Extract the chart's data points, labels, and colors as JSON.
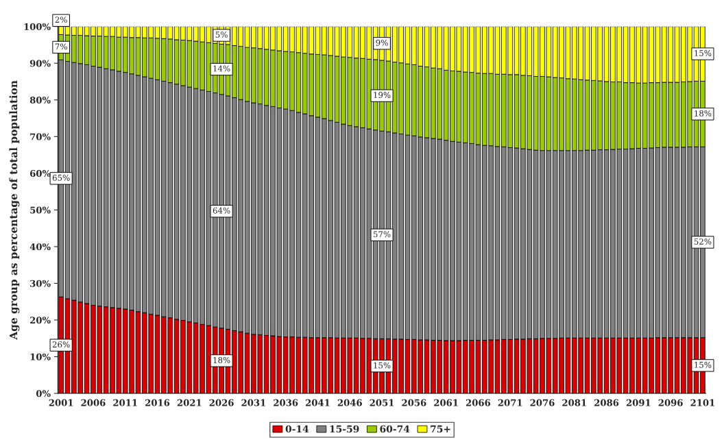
{
  "chart_data": {
    "type": "bar",
    "stacked": true,
    "ylabel": "Age group as percentage of total population",
    "categories": [
      "2001",
      null,
      null,
      null,
      null,
      "2006",
      null,
      null,
      null,
      null,
      "2011",
      null,
      null,
      null,
      null,
      "2016",
      null,
      null,
      null,
      null,
      "2021",
      null,
      null,
      null,
      null,
      "2026",
      null,
      null,
      null,
      null,
      "2031",
      null,
      null,
      null,
      null,
      "2036",
      null,
      null,
      null,
      null,
      "2041",
      null,
      null,
      null,
      null,
      "2046",
      null,
      null,
      null,
      null,
      "2051",
      null,
      null,
      null,
      null,
      "2056",
      null,
      null,
      null,
      null,
      "2061",
      null,
      null,
      null,
      null,
      "2066",
      null,
      null,
      null,
      null,
      "2071",
      null,
      null,
      null,
      null,
      "2076",
      null,
      null,
      null,
      null,
      "2081",
      null,
      null,
      null,
      null,
      "2086",
      null,
      null,
      null,
      null,
      "2091",
      null,
      null,
      null,
      null,
      "2096",
      null,
      null,
      null,
      null,
      "2101"
    ],
    "series": [
      {
        "name": "0-14",
        "color": "#dd0000",
        "values": [
          26.3,
          25.8,
          25.4,
          24.9,
          24.5,
          24.0,
          23.8,
          23.6,
          23.4,
          23.2,
          23.0,
          22.7,
          22.3,
          22.0,
          21.6,
          21.3,
          20.9,
          20.6,
          20.2,
          19.9,
          19.5,
          19.2,
          18.8,
          18.5,
          18.1,
          17.8,
          17.5,
          17.1,
          16.8,
          16.4,
          16.1,
          16.0,
          15.8,
          15.7,
          15.5,
          15.4,
          15.4,
          15.3,
          15.3,
          15.2,
          15.2,
          15.2,
          15.2,
          15.1,
          15.1,
          15.1,
          15.1,
          15.0,
          15.0,
          14.9,
          14.9,
          14.9,
          14.8,
          14.8,
          14.7,
          14.7,
          14.6,
          14.6,
          14.5,
          14.5,
          14.4,
          14.4,
          14.4,
          14.5,
          14.5,
          14.5,
          14.5,
          14.6,
          14.6,
          14.7,
          14.7,
          14.8,
          14.8,
          14.9,
          14.9,
          15.0,
          15.0,
          15.0,
          15.1,
          15.1,
          15.1,
          15.1,
          15.1,
          15.1,
          15.1,
          15.1,
          15.1,
          15.1,
          15.1,
          15.1,
          15.1,
          15.1,
          15.1,
          15.2,
          15.2,
          15.2,
          15.2,
          15.2,
          15.2,
          15.2,
          15.2
        ],
        "value_labels": [
          "26%",
          null,
          null,
          null,
          null,
          null,
          null,
          null,
          null,
          null,
          null,
          null,
          null,
          null,
          null,
          null,
          null,
          null,
          null,
          null,
          null,
          null,
          null,
          null,
          null,
          "18%",
          null,
          null,
          null,
          null,
          null,
          null,
          null,
          null,
          null,
          null,
          null,
          null,
          null,
          null,
          null,
          null,
          null,
          null,
          null,
          null,
          null,
          null,
          null,
          null,
          "15%",
          null,
          null,
          null,
          null,
          null,
          null,
          null,
          null,
          null,
          null,
          null,
          null,
          null,
          null,
          null,
          null,
          null,
          null,
          null,
          null,
          null,
          null,
          null,
          null,
          null,
          null,
          null,
          null,
          null,
          null,
          null,
          null,
          null,
          null,
          null,
          null,
          null,
          null,
          null,
          null,
          null,
          null,
          null,
          null,
          null,
          null,
          null,
          null,
          null,
          "15%"
        ]
      },
      {
        "name": "15-59",
        "color": "#808080",
        "values": [
          64.6,
          64.7,
          64.8,
          65.0,
          65.1,
          65.2,
          65.1,
          64.9,
          64.8,
          64.6,
          64.5,
          64.4,
          64.4,
          64.3,
          64.3,
          64.2,
          64.2,
          64.1,
          64.1,
          64.0,
          64.0,
          63.9,
          63.9,
          63.8,
          63.8,
          63.7,
          63.6,
          63.5,
          63.3,
          63.2,
          63.1,
          62.9,
          62.7,
          62.5,
          62.3,
          62.1,
          61.7,
          61.3,
          60.9,
          60.5,
          60.1,
          59.7,
          59.2,
          58.8,
          58.3,
          57.9,
          57.6,
          57.4,
          57.1,
          56.9,
          56.6,
          56.4,
          56.2,
          55.9,
          55.7,
          55.5,
          55.3,
          55.1,
          55.0,
          54.8,
          54.6,
          54.3,
          54.1,
          53.8,
          53.6,
          53.3,
          53.1,
          52.9,
          52.7,
          52.5,
          52.3,
          52.1,
          51.9,
          51.6,
          51.4,
          51.2,
          51.2,
          51.2,
          51.1,
          51.1,
          51.1,
          51.1,
          51.2,
          51.2,
          51.3,
          51.3,
          51.4,
          51.5,
          51.5,
          51.6,
          51.7,
          51.7,
          51.8,
          51.8,
          51.9,
          51.9,
          51.9,
          51.9,
          52.0,
          52.0,
          52.0
        ],
        "value_labels": [
          "65%",
          null,
          null,
          null,
          null,
          null,
          null,
          null,
          null,
          null,
          null,
          null,
          null,
          null,
          null,
          null,
          null,
          null,
          null,
          null,
          null,
          null,
          null,
          null,
          null,
          "64%",
          null,
          null,
          null,
          null,
          null,
          null,
          null,
          null,
          null,
          null,
          null,
          null,
          null,
          null,
          null,
          null,
          null,
          null,
          null,
          null,
          null,
          null,
          null,
          null,
          "57%",
          null,
          null,
          null,
          null,
          null,
          null,
          null,
          null,
          null,
          null,
          null,
          null,
          null,
          null,
          null,
          null,
          null,
          null,
          null,
          null,
          null,
          null,
          null,
          null,
          null,
          null,
          null,
          null,
          null,
          null,
          null,
          null,
          null,
          null,
          null,
          null,
          null,
          null,
          null,
          null,
          null,
          null,
          null,
          null,
          null,
          null,
          null,
          null,
          null,
          "52%"
        ]
      },
      {
        "name": "60-74",
        "color": "#99cc00",
        "values": [
          6.9,
          7.2,
          7.4,
          7.7,
          7.9,
          8.2,
          8.5,
          8.8,
          9.1,
          9.3,
          9.6,
          9.9,
          10.3,
          10.6,
          11.0,
          11.3,
          11.6,
          11.9,
          12.1,
          12.4,
          12.7,
          12.9,
          13.1,
          13.3,
          13.5,
          13.7,
          14.0,
          14.2,
          14.5,
          14.7,
          15.0,
          15.1,
          15.3,
          15.4,
          15.6,
          15.7,
          16.0,
          16.3,
          16.5,
          16.8,
          17.1,
          17.4,
          17.7,
          18.0,
          18.3,
          18.6,
          18.7,
          18.9,
          19.0,
          19.2,
          19.3,
          19.3,
          19.3,
          19.4,
          19.4,
          19.4,
          19.3,
          19.3,
          19.2,
          19.2,
          19.1,
          19.2,
          19.3,
          19.3,
          19.4,
          19.5,
          19.6,
          19.7,
          19.7,
          19.8,
          19.9,
          20.0,
          20.0,
          20.1,
          20.1,
          20.2,
          20.1,
          19.9,
          19.8,
          19.6,
          19.5,
          19.3,
          19.1,
          19.0,
          18.8,
          18.6,
          18.4,
          18.3,
          18.1,
          18.0,
          17.8,
          17.8,
          17.8,
          17.7,
          17.7,
          17.7,
          17.7,
          17.8,
          17.8,
          17.9,
          17.9
        ],
        "value_labels": [
          "7%",
          null,
          null,
          null,
          null,
          null,
          null,
          null,
          null,
          null,
          null,
          null,
          null,
          null,
          null,
          null,
          null,
          null,
          null,
          null,
          null,
          null,
          null,
          null,
          null,
          "14%",
          null,
          null,
          null,
          null,
          null,
          null,
          null,
          null,
          null,
          null,
          null,
          null,
          null,
          null,
          null,
          null,
          null,
          null,
          null,
          null,
          null,
          null,
          null,
          null,
          "19%",
          null,
          null,
          null,
          null,
          null,
          null,
          null,
          null,
          null,
          null,
          null,
          null,
          null,
          null,
          null,
          null,
          null,
          null,
          null,
          null,
          null,
          null,
          null,
          null,
          null,
          null,
          null,
          null,
          null,
          null,
          null,
          null,
          null,
          null,
          null,
          null,
          null,
          null,
          null,
          null,
          null,
          null,
          null,
          null,
          null,
          null,
          null,
          null,
          null,
          "18%"
        ]
      },
      {
        "name": "75+",
        "color": "#ffff00",
        "values": [
          2.2,
          2.3,
          2.4,
          2.4,
          2.5,
          2.6,
          2.6,
          2.7,
          2.7,
          2.9,
          2.9,
          3.0,
          3.0,
          3.1,
          3.1,
          3.2,
          3.3,
          3.4,
          3.6,
          3.7,
          3.8,
          4.0,
          4.2,
          4.4,
          4.6,
          4.8,
          4.9,
          5.2,
          5.4,
          5.7,
          5.8,
          6.0,
          6.2,
          6.4,
          6.6,
          6.8,
          6.9,
          7.1,
          7.3,
          7.5,
          7.6,
          7.7,
          7.9,
          8.1,
          8.3,
          8.4,
          8.6,
          8.7,
          8.9,
          9.0,
          9.2,
          9.4,
          9.7,
          9.9,
          10.2,
          10.4,
          10.8,
          11.0,
          11.3,
          11.5,
          11.9,
          12.1,
          12.2,
          12.4,
          12.5,
          12.7,
          12.8,
          12.8,
          13.0,
          13.0,
          13.1,
          13.1,
          13.3,
          13.4,
          13.6,
          13.6,
          13.7,
          13.9,
          14.0,
          14.2,
          14.3,
          14.5,
          14.6,
          14.7,
          14.8,
          15.0,
          15.1,
          15.1,
          15.3,
          15.3,
          15.4,
          15.4,
          15.3,
          15.3,
          15.2,
          15.2,
          15.2,
          15.1,
          15.0,
          14.9,
          14.9
        ],
        "value_labels": [
          "2%",
          null,
          null,
          null,
          null,
          null,
          null,
          null,
          null,
          null,
          null,
          null,
          null,
          null,
          null,
          null,
          null,
          null,
          null,
          null,
          null,
          null,
          null,
          null,
          null,
          "5%",
          null,
          null,
          null,
          null,
          null,
          null,
          null,
          null,
          null,
          null,
          null,
          null,
          null,
          null,
          null,
          null,
          null,
          null,
          null,
          null,
          null,
          null,
          null,
          null,
          "9%",
          null,
          null,
          null,
          null,
          null,
          null,
          null,
          null,
          null,
          null,
          null,
          null,
          null,
          null,
          null,
          null,
          null,
          null,
          null,
          null,
          null,
          null,
          null,
          null,
          null,
          null,
          null,
          null,
          null,
          null,
          null,
          null,
          null,
          null,
          null,
          null,
          null,
          null,
          null,
          null,
          null,
          null,
          null,
          null,
          null,
          null,
          null,
          null,
          null,
          "15%"
        ]
      }
    ],
    "ylim": [
      0,
      100
    ],
    "yticks": [
      {
        "value": 0,
        "label": "0%"
      },
      {
        "value": 10,
        "label": "10%"
      },
      {
        "value": 20,
        "label": "20%"
      },
      {
        "value": 30,
        "label": "30%"
      },
      {
        "value": 40,
        "label": "40%"
      },
      {
        "value": 50,
        "label": "50%"
      },
      {
        "value": 60,
        "label": "60%"
      },
      {
        "value": 70,
        "label": "70%"
      },
      {
        "value": 80,
        "label": "80%"
      },
      {
        "value": 90,
        "label": "90%"
      },
      {
        "value": 100,
        "label": "100%"
      }
    ],
    "grid": false,
    "legend": "bottom"
  }
}
